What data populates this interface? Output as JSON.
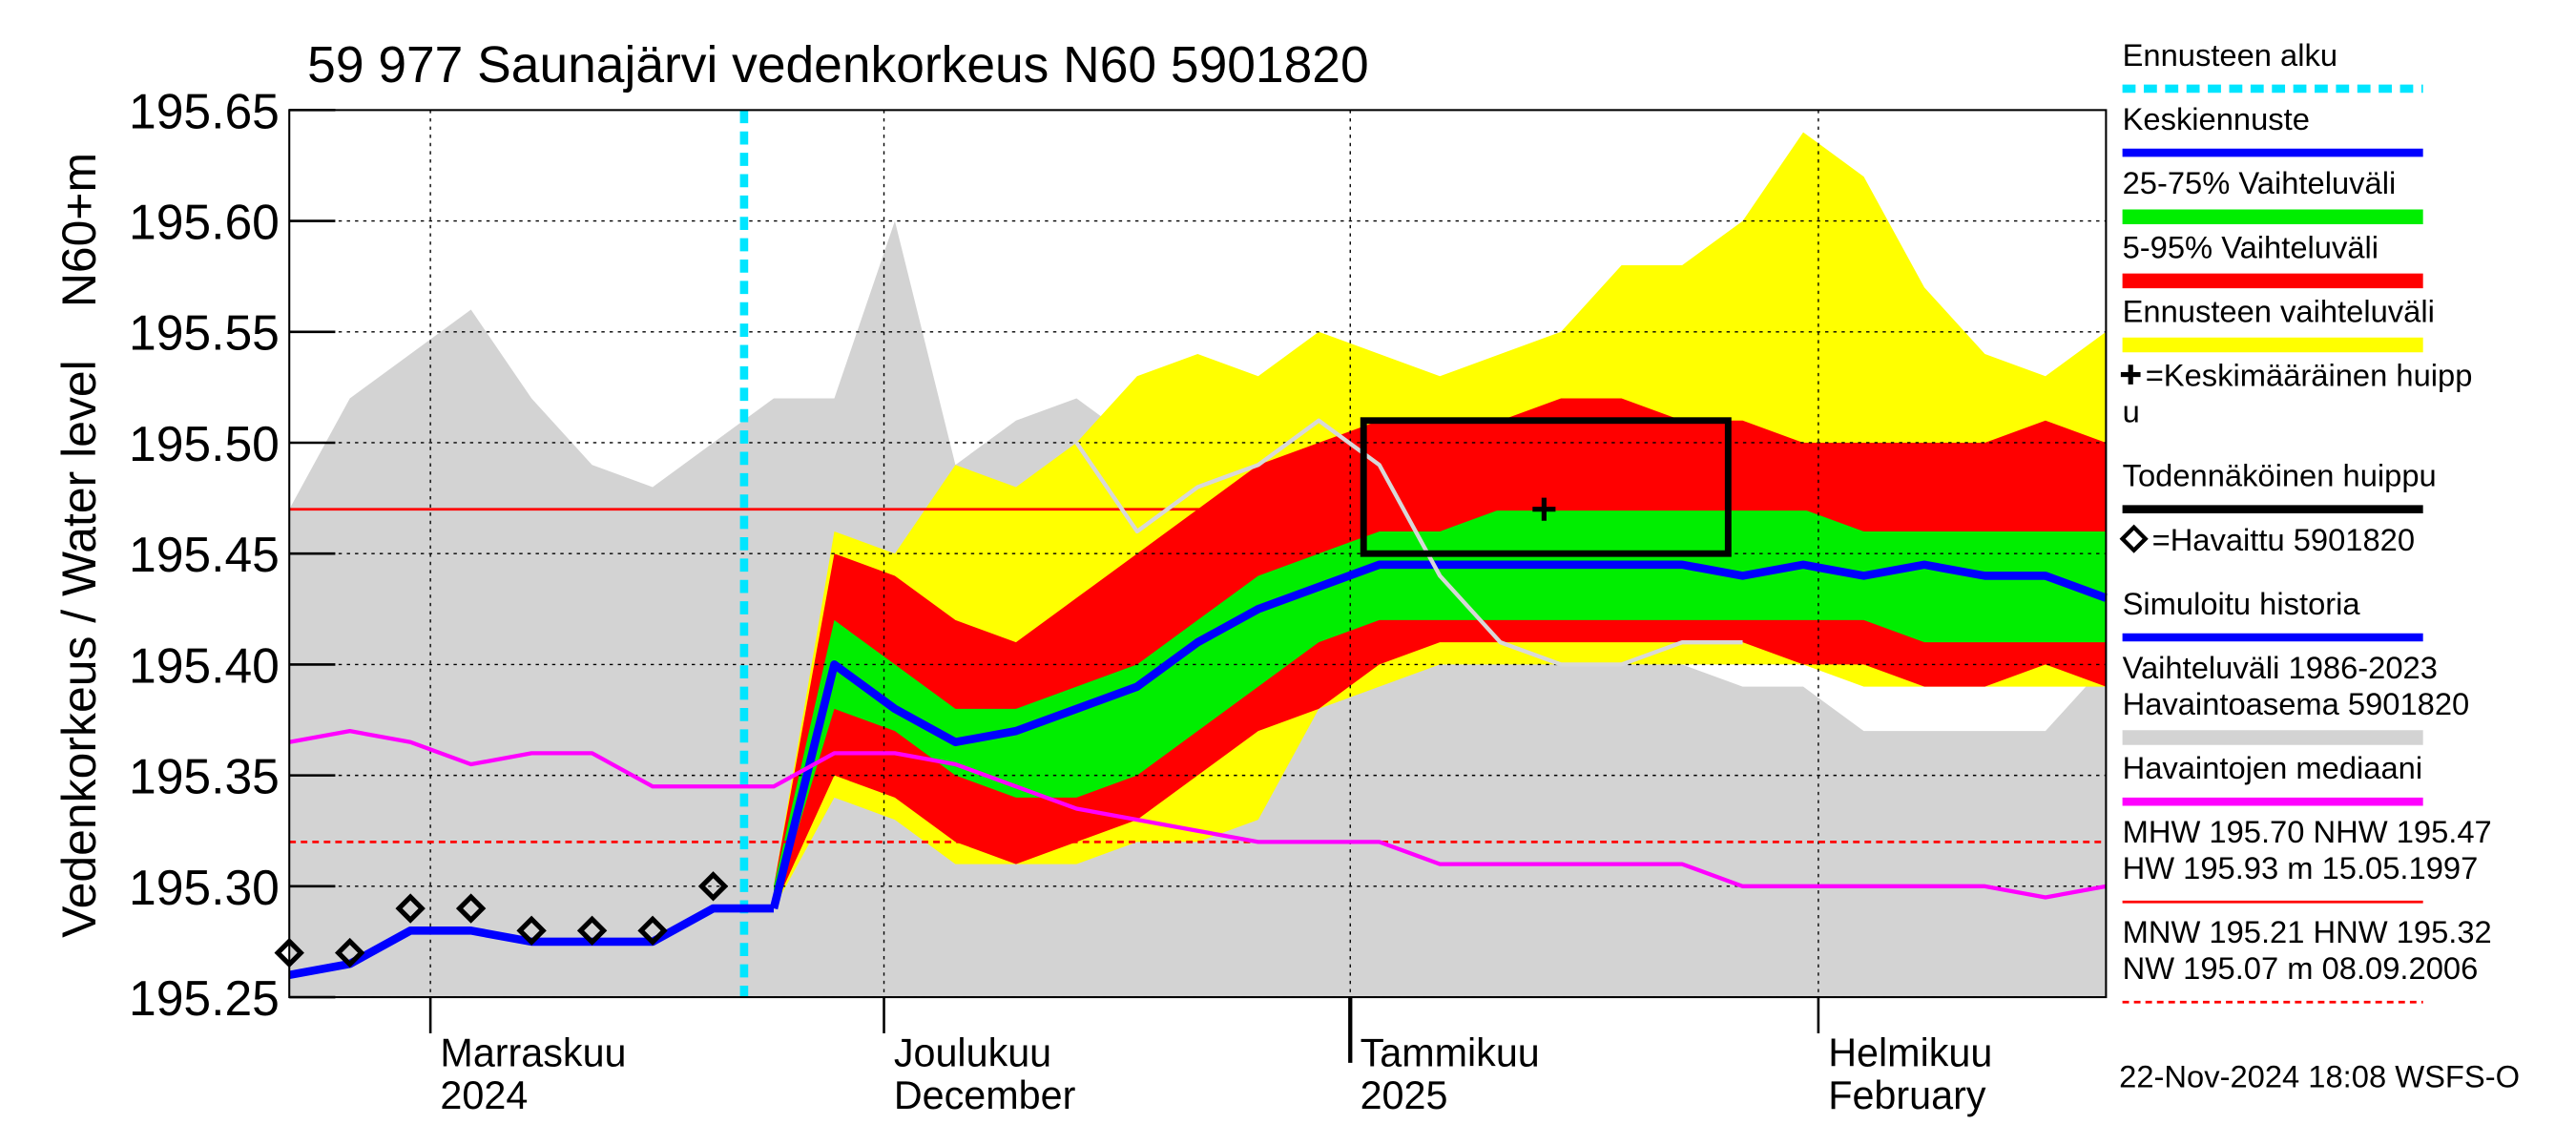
{
  "chart_data": {
    "type": "hydrograph",
    "title": "59 977 Saunajärvi vedenkorkeus N60 5901820",
    "ylabel": [
      "Vedenkorkeus / Water level",
      "N60+m"
    ],
    "footer": "22-Nov-2024 18:08 WSFS-O",
    "categories": [
      null,
      null,
      null,
      null,
      null,
      null,
      null,
      null,
      null,
      null,
      null,
      null,
      null,
      null,
      null,
      null,
      null,
      null,
      null,
      null,
      null,
      null,
      null,
      null,
      null,
      null,
      null,
      null,
      null,
      null,
      null
    ],
    "ylim": [
      195.25,
      195.65
    ],
    "yticks": [
      195.25,
      {
        "value": 195.3,
        "label": "195.30"
      },
      195.35,
      {
        "value": 195.4,
        "label": "195.40"
      },
      195.45,
      {
        "value": 195.5,
        "label": "195.50"
      },
      195.55,
      {
        "value": 195.6,
        "label": "195.60"
      },
      195.65
    ],
    "xticks": [
      {
        "value": 2.33,
        "label": [
          "Marraskuu",
          "2024"
        ]
      },
      {
        "value": 9.82,
        "label": [
          "Joulukuu",
          "December"
        ]
      },
      {
        "value": 17.52,
        "label": [
          "Tammikuu",
          "2025"
        ]
      },
      {
        "value": 25.25,
        "label": [
          "Helmikuu",
          "February"
        ]
      }
    ],
    "grid": true,
    "layers": [
      {
        "kind": "vline",
        "name": [
          "Ennusteen alku"
        ],
        "color": "#00e5ff",
        "x": 7.51
      },
      {
        "kind": "line",
        "name": [
          "Keskiennuste"
        ],
        "color": "#0000ff",
        "values": [
          null,
          null,
          null,
          null,
          null,
          null,
          null,
          null,
          195.29,
          195.4,
          195.38,
          195.365,
          195.37,
          195.38,
          195.39,
          195.41,
          195.425,
          195.435,
          195.445,
          195.445,
          195.445,
          195.445,
          195.445,
          195.445,
          195.44,
          195.445,
          195.44,
          195.445,
          195.44,
          195.44,
          195.43
        ]
      },
      {
        "kind": "band",
        "name": [
          "25-75% Vaihteluväli"
        ],
        "color": "#00ee00",
        "high": [
          null,
          null,
          null,
          null,
          null,
          null,
          null,
          null,
          195.3,
          195.42,
          195.4,
          195.38,
          195.38,
          195.39,
          195.4,
          195.42,
          195.44,
          195.45,
          195.46,
          195.46,
          195.47,
          195.47,
          195.47,
          195.47,
          195.47,
          195.47,
          195.46,
          195.46,
          195.46,
          195.46,
          195.46
        ],
        "low": [
          null,
          null,
          null,
          null,
          null,
          null,
          null,
          null,
          195.29,
          195.38,
          195.37,
          195.35,
          195.34,
          195.34,
          195.35,
          195.37,
          195.39,
          195.41,
          195.42,
          195.42,
          195.42,
          195.42,
          195.42,
          195.42,
          195.42,
          195.42,
          195.42,
          195.41,
          195.41,
          195.41,
          195.41
        ]
      },
      {
        "kind": "band",
        "name": [
          "5-95% Vaihteluväli"
        ],
        "color": "#ff0000",
        "high": [
          null,
          null,
          null,
          null,
          null,
          null,
          null,
          null,
          195.3,
          195.45,
          195.44,
          195.42,
          195.41,
          195.43,
          195.45,
          195.47,
          195.49,
          195.5,
          195.51,
          195.51,
          195.51,
          195.52,
          195.52,
          195.51,
          195.51,
          195.5,
          195.5,
          195.5,
          195.5,
          195.51,
          195.5
        ],
        "low": [
          null,
          null,
          null,
          null,
          null,
          null,
          null,
          null,
          195.29,
          195.35,
          195.34,
          195.32,
          195.31,
          195.32,
          195.33,
          195.35,
          195.37,
          195.38,
          195.4,
          195.41,
          195.41,
          195.41,
          195.41,
          195.41,
          195.41,
          195.4,
          195.4,
          195.39,
          195.39,
          195.4,
          195.39
        ]
      },
      {
        "kind": "band",
        "name": [
          "Ennusteen vaihteluväli"
        ],
        "color": "#ffff00",
        "high": [
          null,
          null,
          null,
          null,
          null,
          null,
          null,
          null,
          195.3,
          195.46,
          195.45,
          195.49,
          195.48,
          195.5,
          195.53,
          195.54,
          195.53,
          195.55,
          195.54,
          195.53,
          195.54,
          195.55,
          195.58,
          195.58,
          195.6,
          195.64,
          195.62,
          195.57,
          195.54,
          195.53,
          195.55
        ],
        "low": [
          null,
          null,
          null,
          null,
          null,
          null,
          null,
          null,
          195.29,
          195.34,
          195.33,
          195.31,
          195.31,
          195.31,
          195.32,
          195.32,
          195.33,
          195.38,
          195.39,
          195.4,
          195.4,
          195.4,
          195.4,
          195.4,
          195.4,
          195.4,
          195.39,
          195.39,
          195.39,
          195.39,
          195.39
        ]
      },
      {
        "kind": "cross",
        "name": [
          "=Keskimääräinen huipp",
          "u"
        ],
        "color": "#000000",
        "x": 20.72,
        "y": 195.47
      },
      {
        "kind": "rect",
        "name": [
          "Todennäköinen huippu"
        ],
        "color": "#000000",
        "x": [
          17.74,
          23.76
        ],
        "y": [
          195.45,
          195.51
        ]
      },
      {
        "kind": "scatter",
        "name": [
          "=Havaittu 5901820"
        ],
        "color": "#000000",
        "values": [
          195.27,
          195.27,
          195.29,
          195.29,
          195.28,
          195.28,
          195.28,
          195.3,
          null,
          null,
          null,
          null,
          null,
          null,
          null,
          null,
          null,
          null,
          null,
          null,
          null,
          null,
          null,
          null,
          null,
          null,
          null,
          null,
          null,
          null,
          null
        ]
      },
      {
        "kind": "line",
        "name": [
          "Simuloitu historia"
        ],
        "color": "#0000ff",
        "values": [
          195.26,
          195.265,
          195.28,
          195.28,
          195.275,
          195.275,
          195.275,
          195.29,
          195.29,
          null,
          null,
          null,
          null,
          null,
          null,
          null,
          null,
          null,
          null,
          null,
          null,
          null,
          null,
          null,
          null,
          null,
          null,
          null,
          null,
          null,
          null
        ]
      },
      {
        "kind": "band",
        "name": [
          "Vaihteluväli 1986-2023",
          " Havaintoasema 5901820"
        ],
        "color": "#d3d3d3",
        "high": [
          195.47,
          195.52,
          195.54,
          195.56,
          195.52,
          195.49,
          195.48,
          195.5,
          195.52,
          195.52,
          195.6,
          195.49,
          195.51,
          195.52,
          195.5,
          195.49,
          195.51,
          195.48,
          195.44,
          195.43,
          195.41,
          195.4,
          195.4,
          195.4,
          195.39,
          195.39,
          195.37,
          195.37,
          195.37,
          195.37,
          195.4
        ],
        "low": [
          195.25,
          195.25,
          195.25,
          195.25,
          195.25,
          195.25,
          195.25,
          195.25,
          195.25,
          195.25,
          195.25,
          195.25,
          195.25,
          195.25,
          195.25,
          195.25,
          195.25,
          195.25,
          195.25,
          195.25,
          195.25,
          195.25,
          195.25,
          195.25,
          195.25,
          195.25,
          195.25,
          195.25,
          195.25,
          195.25,
          195.25
        ]
      },
      {
        "kind": "line",
        "color": "#d8d8d8",
        "values": [
          null,
          null,
          null,
          null,
          null,
          null,
          null,
          null,
          null,
          null,
          null,
          null,
          null,
          195.5,
          195.46,
          195.48,
          195.49,
          195.51,
          195.49,
          195.44,
          195.41,
          195.4,
          195.4,
          195.41,
          195.41,
          null,
          null,
          null,
          null,
          null,
          null
        ]
      },
      {
        "kind": "line",
        "name": [
          "Havaintojen mediaani"
        ],
        "color": "#ff00ff",
        "values": [
          195.365,
          195.37,
          195.365,
          195.355,
          195.36,
          195.36,
          195.345,
          195.345,
          195.345,
          195.36,
          195.36,
          195.355,
          195.345,
          195.335,
          195.33,
          195.325,
          195.32,
          195.32,
          195.32,
          195.31,
          195.31,
          195.31,
          195.31,
          195.31,
          195.3,
          195.3,
          195.3,
          195.3,
          195.3,
          195.295,
          195.3
        ]
      },
      {
        "kind": "hline",
        "name": [
          "MHW 195.70 NHW 195.47",
          "HW 195.93 m 15.05.1997"
        ],
        "color": "#ff0000",
        "y": 195.47
      },
      {
        "kind": "hline",
        "dashed": true,
        "name": [
          "MNW 195.21 HNW 195.32",
          "NW 195.07 m 08.09.2006"
        ],
        "color": "#ff0000",
        "y": 195.32
      }
    ]
  }
}
